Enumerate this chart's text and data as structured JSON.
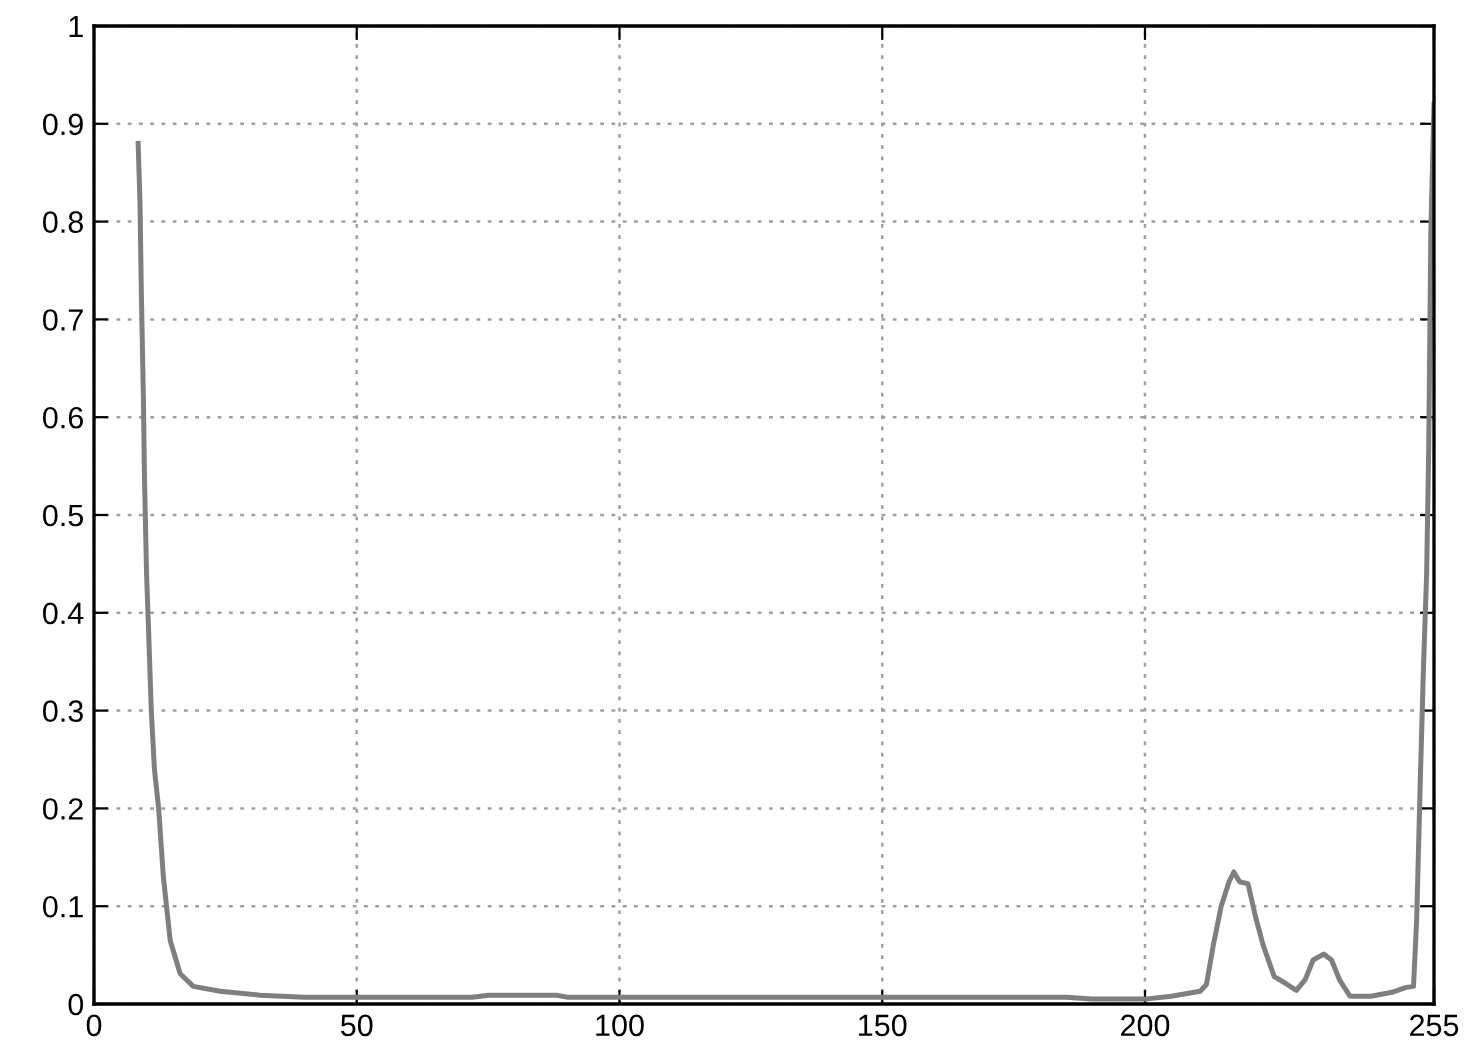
{
  "chart_data": {
    "type": "line",
    "xlim": [
      0,
      255
    ],
    "ylim": [
      0,
      1
    ],
    "xticks": [
      0,
      50,
      100,
      150,
      200,
      255
    ],
    "yticks": [
      0,
      0.1,
      0.2,
      0.3,
      0.4,
      0.5,
      0.6,
      0.7,
      0.8,
      0.9,
      1
    ],
    "grid": true,
    "marker": "none",
    "line_style": "solid",
    "series": [
      {
        "color": "#7f7f7f",
        "x": [
          8.4,
          8.75,
          9.0,
          9.4,
          9.6,
          10.0,
          10.4,
          10.9,
          11.5,
          12.3,
          13.2,
          14.5,
          16.4,
          18.9,
          24,
          31.6,
          40,
          60,
          72,
          75,
          88,
          90,
          120,
          150,
          185,
          190,
          200,
          205,
          210.5,
          211.7,
          213,
          214.5,
          216,
          216.9,
          218,
          219.6,
          221,
          222.5,
          224.6,
          226.5,
          228.8,
          230.5,
          232,
          234,
          235.5,
          237,
          239,
          243,
          247,
          249.7,
          251.1,
          251.7,
          252.4,
          253,
          253.6,
          254,
          254.4,
          255
        ],
        "values": [
          0.88,
          0.82,
          0.73,
          0.62,
          0.54,
          0.44,
          0.38,
          0.3,
          0.24,
          0.2,
          0.13,
          0.065,
          0.031,
          0.018,
          0.013,
          0.009,
          0.007,
          0.007,
          0.007,
          0.009,
          0.009,
          0.007,
          0.007,
          0.007,
          0.007,
          0.005,
          0.005,
          0.008,
          0.013,
          0.02,
          0.06,
          0.1,
          0.125,
          0.135,
          0.125,
          0.123,
          0.09,
          0.06,
          0.028,
          0.022,
          0.014,
          0.025,
          0.045,
          0.051,
          0.045,
          0.025,
          0.008,
          0.008,
          0.012,
          0.017,
          0.018,
          0.086,
          0.23,
          0.345,
          0.44,
          0.57,
          0.79,
          0.92
        ]
      }
    ]
  }
}
